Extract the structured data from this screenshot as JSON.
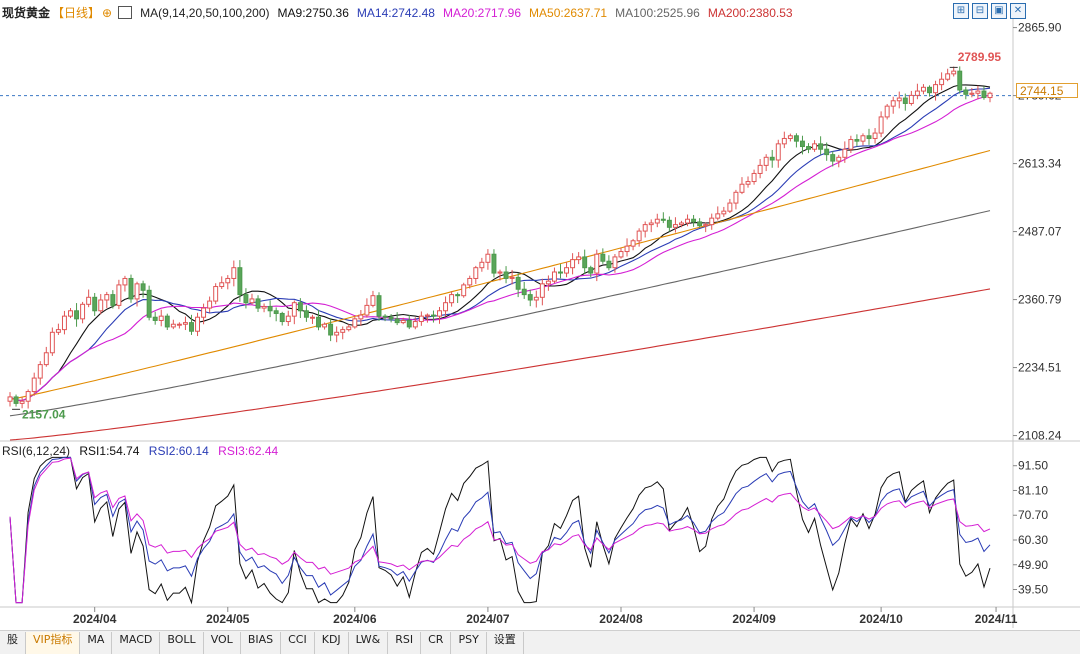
{
  "header": {
    "symbol": "现货黄金",
    "period": "【日线】",
    "period_icon": "⊕",
    "ma_label": "MA(9,14,20,50,100,200)",
    "ma_values": [
      {
        "label": "MA9:2750.36",
        "color": "#111111"
      },
      {
        "label": "MA14:2742.48",
        "color": "#2a3cb5"
      },
      {
        "label": "MA20:2717.96",
        "color": "#d41fd4"
      },
      {
        "label": "MA50:2637.71",
        "color": "#e08a00"
      },
      {
        "label": "MA100:2525.96",
        "color": "#666666"
      },
      {
        "label": "MA200:2380.53",
        "color": "#cc3333"
      }
    ],
    "toolbar_icons": [
      "zoom-icon",
      "shrink-icon",
      "save-icon",
      "close-icon"
    ]
  },
  "rsi_header": {
    "label": "RSI(6,12,24)",
    "values": [
      {
        "label": "RSI1:54.74",
        "color": "#111111"
      },
      {
        "label": "RSI2:60.14",
        "color": "#2a3cb5"
      },
      {
        "label": "RSI3:62.44",
        "color": "#d41fd4"
      }
    ]
  },
  "price_tag": "2744.15",
  "tabs": [
    "股",
    "VIP指标",
    "MA",
    "MACD",
    "BOLL",
    "VOL",
    "BIAS",
    "CCI",
    "KDJ",
    "LW&",
    "RSI",
    "CR",
    "PSY",
    "设置"
  ],
  "active_tab": 1,
  "chart_data": [
    {
      "type": "candlestick",
      "title": "现货黄金",
      "ylim": [
        2100,
        2880
      ],
      "y_ticks": [
        "2865.90",
        "2739.62",
        "2613.34",
        "2487.07",
        "2360.79",
        "2234.51",
        "2108.24"
      ],
      "x_ticks": [
        "2024/04",
        "2024/05",
        "2024/06",
        "2024/07",
        "2024/08",
        "2024/09",
        "2024/10",
        "2024/11"
      ],
      "annotations": {
        "high": "2789.95",
        "low": "2157.04"
      },
      "grid": false,
      "close_approx": [
        2180,
        2168,
        2172,
        2190,
        2215,
        2240,
        2262,
        2300,
        2305,
        2330,
        2340,
        2325,
        2352,
        2365,
        2340,
        2360,
        2370,
        2350,
        2388,
        2400,
        2362,
        2390,
        2378,
        2328,
        2322,
        2330,
        2310,
        2315,
        2315,
        2318,
        2302,
        2328,
        2345,
        2358,
        2385,
        2392,
        2400,
        2420,
        2370,
        2355,
        2362,
        2345,
        2348,
        2340,
        2335,
        2320,
        2330,
        2355,
        2340,
        2328,
        2328,
        2310,
        2315,
        2295,
        2300,
        2305,
        2310,
        2325,
        2332,
        2350,
        2368,
        2330,
        2328,
        2325,
        2318,
        2322,
        2310,
        2320,
        2330,
        2332,
        2330,
        2340,
        2355,
        2370,
        2368,
        2388,
        2400,
        2420,
        2430,
        2445,
        2410,
        2412,
        2400,
        2402,
        2380,
        2370,
        2360,
        2365,
        2390,
        2395,
        2412,
        2410,
        2420,
        2435,
        2440,
        2420,
        2410,
        2445,
        2432,
        2420,
        2440,
        2450,
        2460,
        2470,
        2488,
        2500,
        2503,
        2510,
        2508,
        2495,
        2500,
        2503,
        2510,
        2505,
        2498,
        2500,
        2512,
        2520,
        2525,
        2540,
        2560,
        2575,
        2580,
        2595,
        2610,
        2625,
        2620,
        2650,
        2660,
        2665,
        2655,
        2645,
        2640,
        2650,
        2640,
        2630,
        2618,
        2625,
        2640,
        2658,
        2655,
        2665,
        2660,
        2670,
        2700,
        2720,
        2730,
        2735,
        2725,
        2740,
        2748,
        2755,
        2745,
        2760,
        2770,
        2780,
        2785,
        2750,
        2742,
        2744,
        2748,
        2736,
        2744
      ],
      "series": [
        {
          "name": "MA9",
          "final": 2750.36
        },
        {
          "name": "MA14",
          "final": 2742.48
        },
        {
          "name": "MA20",
          "final": 2717.96
        },
        {
          "name": "MA50",
          "final": 2637.71,
          "start": 2175
        },
        {
          "name": "MA100",
          "final": 2525.96,
          "start": 2145
        },
        {
          "name": "MA200",
          "final": 2380.53,
          "start": 2100
        }
      ]
    },
    {
      "type": "line",
      "title": "RSI(6,12,24)",
      "ylim": [
        33,
        96
      ],
      "y_ticks": [
        "91.50",
        "81.10",
        "70.70",
        "60.30",
        "49.90",
        "39.50"
      ],
      "series": [
        {
          "name": "RSI1",
          "final": 54.74
        },
        {
          "name": "RSI2",
          "final": 60.14
        },
        {
          "name": "RSI3",
          "final": 62.44
        }
      ]
    }
  ]
}
